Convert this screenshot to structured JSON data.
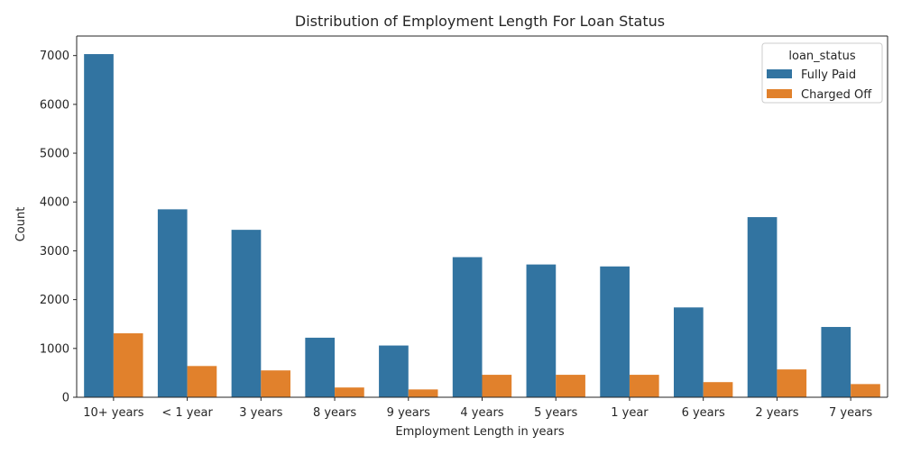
{
  "chart_data": {
    "type": "bar",
    "title": "Distribution of Employment Length For Loan Status",
    "xlabel": "Employment Length in years",
    "ylabel": "Count",
    "categories": [
      "10+ years",
      "< 1 year",
      "3 years",
      "8 years",
      "9 years",
      "4 years",
      "5 years",
      "1 year",
      "6 years",
      "2 years",
      "7 years"
    ],
    "series": [
      {
        "name": "Fully Paid",
        "color": "#3274a1",
        "values": [
          7030,
          3850,
          3430,
          1220,
          1060,
          2870,
          2720,
          2680,
          1840,
          3690,
          1440
        ]
      },
      {
        "name": "Charged Off",
        "color": "#e1812c",
        "values": [
          1310,
          640,
          550,
          200,
          160,
          460,
          460,
          460,
          310,
          570,
          270
        ]
      }
    ],
    "ylim": [
      0,
      7400
    ],
    "yticks": [
      0,
      1000,
      2000,
      3000,
      4000,
      5000,
      6000,
      7000
    ],
    "legend": {
      "title": "loan_status",
      "position": "top-right"
    },
    "grid": false
  }
}
